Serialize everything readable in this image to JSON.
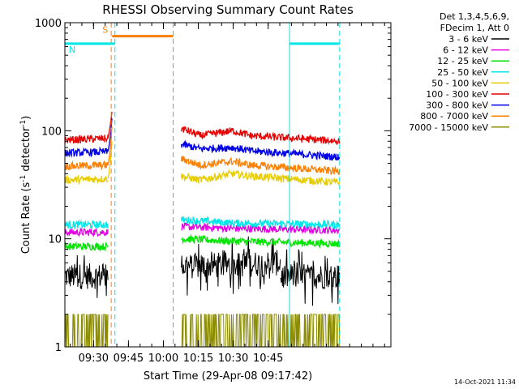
{
  "chart_data": {
    "type": "line",
    "title": "RHESSI Observing Summary Count Rates",
    "xlabel": "Start Time (29-Apr-08 09:17:42)",
    "ylabel_parts": [
      "Count Rate (s",
      "-1",
      " detector",
      "-1",
      ")"
    ],
    "yscale": "log",
    "ylim": [
      1,
      1000
    ],
    "xlim_minutes": [
      0,
      140
    ],
    "x_ticks": [
      {
        "label": "09:30",
        "min": 12.3
      },
      {
        "label": "09:45",
        "min": 27.3
      },
      {
        "label": "10:00",
        "min": 42.3
      },
      {
        "label": "10:15",
        "min": 57.3
      },
      {
        "label": "10:30",
        "min": 72.3
      },
      {
        "label": "10:45",
        "min": 87.3
      }
    ],
    "y_ticks": [
      {
        "label": "1",
        "value": 1
      },
      {
        "label": "10",
        "value": 10
      },
      {
        "label": "100",
        "value": 100
      },
      {
        "label": "1000",
        "value": 1000
      }
    ],
    "legend": {
      "placement": "outside-right",
      "header": [
        "Det 1,3,4,5,6,9,",
        "FDecim 1, Att 0"
      ],
      "entries": [
        {
          "label": "3 - 6 keV",
          "color": "#000000"
        },
        {
          "label": "6 - 12 keV",
          "color": "#e600e6"
        },
        {
          "label": "12 - 25 keV",
          "color": "#00e600"
        },
        {
          "label": "25 - 50 keV",
          "color": "#00e6e6"
        },
        {
          "label": "50 - 100 keV",
          "color": "#e6cc00"
        },
        {
          "label": "100 - 300 keV",
          "color": "#e60000"
        },
        {
          "label": "300 - 800 keV",
          "color": "#0000e6"
        },
        {
          "label": "800 - 7000 keV",
          "color": "#ff7f00"
        },
        {
          "label": "7000 - 15000 keV",
          "color": "#8c8c00"
        }
      ]
    },
    "gap_minutes": [
      21.5,
      50.0
    ],
    "series": [
      {
        "color": "#000000",
        "segments": [
          {
            "x": [
              0,
              18.5
            ],
            "values": [
              4.5,
              4.5
            ]
          },
          {
            "x": [
              50,
              92.5
            ],
            "values": [
              5.5,
              6.0
            ]
          },
          {
            "x": [
              92.5,
              118
            ],
            "values": [
              4.5,
              4.5
            ]
          }
        ]
      },
      {
        "color": "#e600e6",
        "segments": [
          {
            "x": [
              0,
              18.5
            ],
            "values": [
              11.5,
              11.5
            ]
          },
          {
            "x": [
              50,
              72,
              118
            ],
            "values": [
              13.0,
              12.5,
              12.0
            ]
          }
        ]
      },
      {
        "color": "#00e600",
        "segments": [
          {
            "x": [
              0,
              18.5
            ],
            "values": [
              8.5,
              8.5
            ]
          },
          {
            "x": [
              50,
              72,
              118
            ],
            "values": [
              10.0,
              9.5,
              9.0
            ]
          }
        ]
      },
      {
        "color": "#00e6e6",
        "segments": [
          {
            "x": [
              0,
              18.5
            ],
            "values": [
              13.5,
              13.5
            ]
          },
          {
            "x": [
              50,
              72,
              118
            ],
            "values": [
              15.0,
              14.0,
              13.5
            ]
          }
        ]
      },
      {
        "color": "#e6cc00",
        "segments": [
          {
            "x": [
              0,
              18.5
            ],
            "values": [
              35,
              36
            ]
          },
          {
            "x": [
              50,
              58,
              72,
              80,
              118
            ],
            "values": [
              38,
              35,
              40,
              38,
              33
            ]
          }
        ]
      },
      {
        "color": "#e60000",
        "segments": [
          {
            "x": [
              0,
              18.5
            ],
            "values": [
              82,
              85
            ]
          },
          {
            "x": [
              50,
              58,
              72,
              80,
              118
            ],
            "values": [
              105,
              90,
              100,
              90,
              80
            ]
          }
        ]
      },
      {
        "color": "#0000e6",
        "segments": [
          {
            "x": [
              0,
              18.5
            ],
            "values": [
              62,
              64
            ]
          },
          {
            "x": [
              50,
              58,
              72,
              80,
              118
            ],
            "values": [
              75,
              68,
              70,
              65,
              57
            ]
          }
        ]
      },
      {
        "color": "#ff7f00",
        "segments": [
          {
            "x": [
              0,
              18.5
            ],
            "values": [
              47,
              48
            ]
          },
          {
            "x": [
              50,
              58,
              72,
              80,
              118
            ],
            "values": [
              55,
              48,
              52,
              48,
              42
            ]
          }
        ]
      },
      {
        "color": "#8c8c00",
        "segments": [
          {
            "x": [
              0,
              18.5
            ],
            "values": [
              1.5,
              1.5
            ]
          },
          {
            "x": [
              50,
              118
            ],
            "values": [
              1.5,
              1.5
            ]
          }
        ]
      }
    ],
    "flags": [
      {
        "label": "S",
        "color": "#ff7f00",
        "start_min": 20.3,
        "end_min": 46.5,
        "value": 750
      },
      {
        "label": "N",
        "color": "#00e6e6",
        "start_min": 0,
        "end_min": 21.5,
        "value": 640
      },
      {
        "label": "",
        "color": "#00e6e6",
        "start_min": 96.5,
        "end_min": 118,
        "value": 640
      }
    ],
    "vlines": [
      {
        "min": 19.9,
        "color": "#ff7f00",
        "style": "dashed"
      },
      {
        "min": 21.5,
        "color": "#00e6e6",
        "style": "dashed"
      },
      {
        "min": 46.5,
        "color": "#ff7f00",
        "style": "dashed"
      },
      {
        "min": 96.5,
        "color": "#00e6e6",
        "style": "solid"
      },
      {
        "min": 118,
        "color": "#00e6e6",
        "style": "dashed"
      }
    ],
    "footer_timestamp": "14-Oct-2021 11:34"
  }
}
